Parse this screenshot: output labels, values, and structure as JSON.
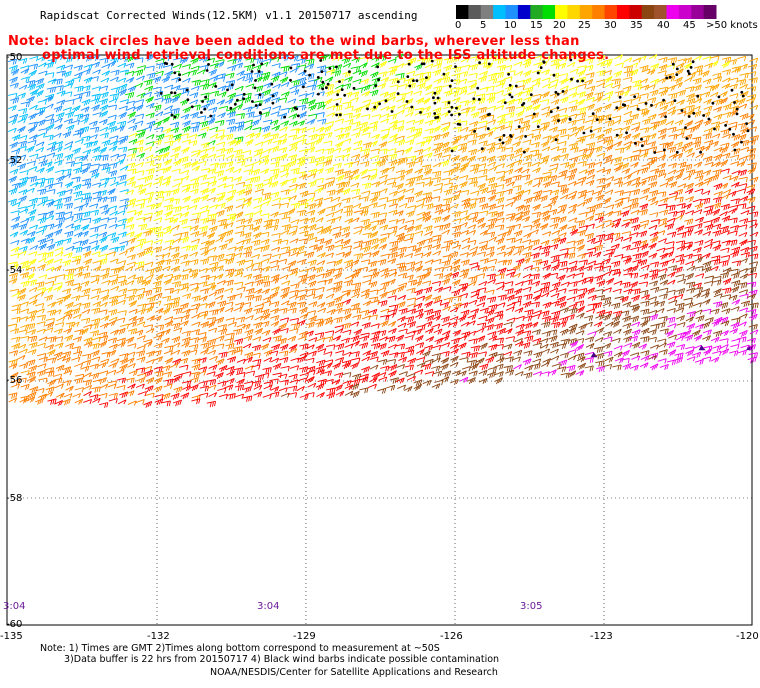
{
  "header": {
    "title": "Rapidscat Corrected Winds(12.5KM) v1.1 20150717 ascending",
    "note_line1": "Note: black circles have been added to the wind barbs, wherever less than",
    "note_line2": "optimal wind retrieval conditions are met due to the ISS altitude changes."
  },
  "color_scale": {
    "labels": [
      "0",
      "5",
      "10",
      "15",
      "20",
      "25",
      "30",
      "35",
      "40",
      "45",
      ">50 knots"
    ],
    "colors": [
      "#000000",
      "#5a5a5a",
      "#7f7f7f",
      "#00bfff",
      "#1e90ff",
      "#0000cd",
      "#22aa22",
      "#00dd00",
      "#ffff00",
      "#ffd700",
      "#ffa500",
      "#ff7f00",
      "#ff4500",
      "#ff0000",
      "#cc0000",
      "#8b4513",
      "#a0522d",
      "#ee00ee",
      "#cc00cc",
      "#990099",
      "#660066"
    ]
  },
  "axes": {
    "lat_labels": [
      "-50",
      "-52",
      "-54",
      "-56",
      "-58",
      "-60"
    ],
    "lon_labels": [
      "-135",
      "-132",
      "-129",
      "-126",
      "-123",
      "-120"
    ]
  },
  "times": [
    "3:04",
    "3:04",
    "3:05"
  ],
  "footer": {
    "line1": "Note: 1) Times are GMT 2)Times along bottom correspond to measurement at ~50S",
    "line2": "3)Data buffer is 22 hrs from 20150717 4) Black wind barbs indicate possible contamination",
    "line3": "NOAA/NESDIS/Center for Satellite Applications and Research"
  },
  "legend_colors": {
    "calm": "#000000",
    "low": "#1e90ff",
    "moderate": "#00dd00",
    "fresh": "#ffff00",
    "strong": "#ff7f00",
    "gale": "#ff0000",
    "storm": "#ee00ee"
  }
}
